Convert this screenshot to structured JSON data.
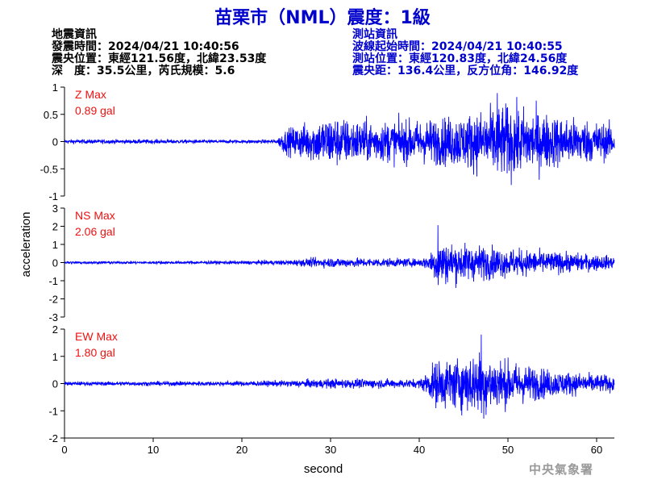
{
  "header": {
    "title": "苗栗市（NML）震度：1級"
  },
  "quake_info": {
    "heading": "地震資訊",
    "origin_time": "發震時間：2024/04/21 10:40:56",
    "epicenter": "震央位置：東經121.56度，北緯23.53度",
    "depth_magnitude": "深　度：35.5公里，芮氏規模：5.6"
  },
  "station_info": {
    "heading": "測站資訊",
    "arrival_time": "波線起始時間：2024/04/21 10:40:55",
    "location": "測站位置：東經120.83度，北緯24.56度",
    "distance_azimuth": "震央距：136.4公里，反方位角：146.92度"
  },
  "footer": {
    "agency": "中央氣象署"
  },
  "colors": {
    "trace": "#0000ff",
    "max_label": "#ee1111",
    "title": "#0000cc"
  },
  "chart_data": {
    "type": "line",
    "xlabel": "second",
    "ylabel": "acceleration",
    "xlim": [
      0,
      62
    ],
    "x_ticks": [
      "0",
      "10",
      "20",
      "30",
      "40",
      "50",
      "60"
    ],
    "grid": false,
    "panels": [
      {
        "name": "Z",
        "max_title": "Z Max",
        "max_value": "0.89 gal",
        "ylim": [
          -1,
          1
        ],
        "y_ticks": [
          "1",
          "0.5",
          "0",
          "-0.5",
          "-1"
        ],
        "envelope": {
          "x": [
            0,
            10,
            20,
            24,
            24.6,
            26,
            28,
            30,
            32,
            35,
            40,
            45,
            50,
            55,
            60,
            62
          ],
          "amplitude": [
            0.04,
            0.04,
            0.03,
            0.04,
            0.2,
            0.3,
            0.38,
            0.5,
            0.42,
            0.38,
            0.4,
            0.5,
            0.7,
            0.5,
            0.38,
            0.3
          ]
        },
        "peak": {
          "x": 48.8,
          "y": 0.89
        }
      },
      {
        "name": "NS",
        "max_title": "NS Max",
        "max_value": "2.06 gal",
        "ylim": [
          -3,
          3
        ],
        "y_ticks": [
          "3",
          "2",
          "1",
          "0",
          "-1",
          "-2",
          "-3"
        ],
        "envelope": {
          "x": [
            0,
            10,
            20,
            25,
            28,
            30,
            35,
            40,
            41,
            42,
            44,
            46,
            50,
            55,
            60,
            62
          ],
          "amplitude": [
            0.08,
            0.08,
            0.1,
            0.14,
            0.25,
            0.28,
            0.25,
            0.22,
            0.4,
            1.25,
            1.1,
            1.0,
            0.8,
            0.6,
            0.45,
            0.35
          ]
        },
        "peak": {
          "x": 42.1,
          "y": 2.06
        }
      },
      {
        "name": "EW",
        "max_title": "EW Max",
        "max_value": "1.80 gal",
        "ylim": [
          -2,
          2
        ],
        "y_ticks": [
          "2",
          "1",
          "0",
          "-1",
          "-2"
        ],
        "envelope": {
          "x": [
            0,
            10,
            20,
            25,
            28,
            30,
            35,
            40,
            41,
            42,
            44,
            47,
            50,
            55,
            60,
            62
          ],
          "amplitude": [
            0.07,
            0.08,
            0.09,
            0.12,
            0.16,
            0.18,
            0.17,
            0.16,
            0.5,
            0.9,
            0.95,
            1.2,
            0.85,
            0.5,
            0.35,
            0.3
          ]
        },
        "peak": {
          "x": 47.0,
          "y": 1.8
        }
      }
    ]
  }
}
